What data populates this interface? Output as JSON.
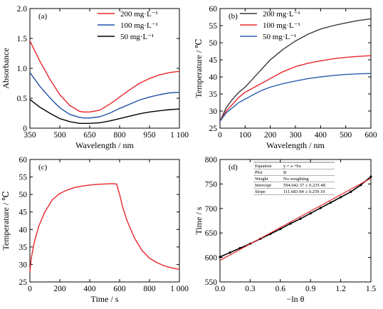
{
  "panels": [
    {
      "id": "a",
      "panel_label": "(a)",
      "xlabel": "Wavelength / nm",
      "ylabel": "Absorbance",
      "xlim": [
        350,
        1100
      ],
      "ylim": [
        0,
        2.0
      ],
      "xticks": [
        350,
        500,
        650,
        800,
        950,
        1100
      ],
      "xtick_labels": [
        "350",
        "500",
        "650",
        "800",
        "950",
        "1 100"
      ],
      "yticks": [
        0,
        0.5,
        1.0,
        1.5,
        2.0
      ],
      "ytick_labels": [
        "0",
        "0.5",
        "1.0",
        "1.5",
        "2.0"
      ],
      "legend": {
        "position": "top-right",
        "entries": [
          {
            "label": "200 mg·L⁻¹",
            "color": "#e8262a"
          },
          {
            "label": "100 mg·L⁻¹",
            "color": "#1f4ea3"
          },
          {
            "label": "50 mg·L⁻¹",
            "color": "#000000"
          }
        ]
      }
    },
    {
      "id": "b",
      "panel_label": "(b)",
      "xlabel": "Wavelength / nm",
      "ylabel": "Temperature / ℃",
      "xlim": [
        0,
        600
      ],
      "ylim": [
        25,
        60
      ],
      "xticks": [
        0,
        100,
        200,
        300,
        400,
        500,
        600
      ],
      "xtick_labels": [
        "0",
        "100",
        "200",
        "300",
        "400",
        "500",
        "600"
      ],
      "yticks": [
        25,
        30,
        35,
        40,
        45,
        50,
        55,
        60
      ],
      "ytick_labels": [
        "25",
        "30",
        "35",
        "40",
        "45",
        "50",
        "55",
        "60"
      ],
      "legend": {
        "position": "top-left",
        "entries": [
          {
            "label": "200 mg·L⁻¹",
            "color": "#3a3a3a"
          },
          {
            "label": "100 mg·L⁻¹",
            "color": "#e8262a"
          },
          {
            "label": "50 mg·L⁻¹",
            "color": "#2a5fb0"
          }
        ]
      }
    },
    {
      "id": "c",
      "panel_label": "(c)",
      "xlabel": "Time / s",
      "ylabel": "Temperature / ℃",
      "xlim": [
        0,
        1000
      ],
      "ylim": [
        25,
        60
      ],
      "xticks": [
        0,
        200,
        400,
        600,
        800,
        1000
      ],
      "xtick_labels": [
        "0",
        "200",
        "400",
        "600",
        "800",
        "1 000"
      ],
      "yticks": [
        25,
        30,
        35,
        40,
        45,
        50,
        55,
        60
      ],
      "ytick_labels": [
        "25",
        "30",
        "35",
        "40",
        "45",
        "50",
        "55",
        "60"
      ]
    },
    {
      "id": "d",
      "panel_label": "(d)",
      "xlabel": "−ln θ",
      "ylabel": "Time / s",
      "xlim": [
        0,
        1.5
      ],
      "ylim": [
        550,
        800
      ],
      "xticks": [
        0,
        0.3,
        0.6,
        0.9,
        1.2,
        1.5
      ],
      "xtick_labels": [
        "0.0",
        "0.3",
        "0.6",
        "0.9",
        "1.2",
        "1.5"
      ],
      "yticks": [
        550,
        600,
        650,
        700,
        750,
        800
      ],
      "ytick_labels": [
        "550",
        "600",
        "650",
        "700",
        "750",
        "800"
      ],
      "fit_table": [
        [
          "Equation",
          "y = a +bx"
        ],
        [
          "Plot",
          "B"
        ],
        [
          "Weight",
          "No weighting"
        ],
        [
          "Intercept",
          "594.042 37 ± 0.235 48"
        ],
        [
          "Slope",
          "111.683 84 ± 0.259 19"
        ]
      ]
    }
  ],
  "chart_data": [
    {
      "type": "line",
      "panel": "a",
      "series": [
        {
          "name": "200 mg·L⁻¹",
          "color": "#e8262a",
          "x": [
            350,
            400,
            450,
            500,
            550,
            600,
            620,
            650,
            700,
            750,
            800,
            850,
            900,
            950,
            1000,
            1050,
            1100
          ],
          "y": [
            1.46,
            1.12,
            0.82,
            0.56,
            0.38,
            0.28,
            0.27,
            0.27,
            0.3,
            0.4,
            0.52,
            0.64,
            0.75,
            0.83,
            0.89,
            0.93,
            0.95
          ]
        },
        {
          "name": "100 mg·L⁻¹",
          "color": "#1f4ea3",
          "x": [
            350,
            400,
            450,
            500,
            550,
            600,
            620,
            650,
            700,
            750,
            800,
            850,
            900,
            950,
            1000,
            1050,
            1100
          ],
          "y": [
            0.93,
            0.7,
            0.51,
            0.34,
            0.23,
            0.18,
            0.17,
            0.17,
            0.19,
            0.25,
            0.33,
            0.4,
            0.47,
            0.52,
            0.56,
            0.59,
            0.6
          ]
        },
        {
          "name": "50 mg·L⁻¹",
          "color": "#000000",
          "x": [
            350,
            400,
            450,
            500,
            550,
            600,
            620,
            650,
            700,
            750,
            800,
            850,
            900,
            950,
            1000,
            1050,
            1100
          ],
          "y": [
            0.48,
            0.35,
            0.25,
            0.16,
            0.11,
            0.08,
            0.08,
            0.08,
            0.09,
            0.12,
            0.16,
            0.2,
            0.24,
            0.27,
            0.29,
            0.31,
            0.32
          ]
        }
      ]
    },
    {
      "type": "line",
      "panel": "b",
      "series": [
        {
          "name": "200 mg·L⁻¹",
          "color": "#3a3a3a",
          "x": [
            0,
            25,
            50,
            75,
            100,
            125,
            150,
            175,
            200,
            250,
            300,
            350,
            400,
            450,
            500,
            550,
            600
          ],
          "y": [
            27.0,
            31.0,
            33.5,
            35.5,
            37.0,
            39.0,
            41.0,
            43.0,
            45.0,
            48.0,
            50.5,
            52.5,
            54.0,
            55.0,
            55.8,
            56.5,
            57.0
          ]
        },
        {
          "name": "100 mg·L⁻¹",
          "color": "#e8262a",
          "x": [
            0,
            25,
            50,
            75,
            100,
            125,
            150,
            175,
            200,
            250,
            300,
            350,
            400,
            450,
            500,
            550,
            600
          ],
          "y": [
            27.0,
            30.0,
            32.0,
            34.0,
            35.5,
            36.5,
            37.5,
            38.5,
            39.5,
            41.5,
            43.0,
            44.0,
            44.7,
            45.3,
            45.7,
            46.0,
            46.2
          ]
        },
        {
          "name": "50 mg·L⁻¹",
          "color": "#2a5fb0",
          "x": [
            0,
            25,
            50,
            75,
            100,
            125,
            150,
            175,
            200,
            250,
            300,
            350,
            400,
            450,
            500,
            550,
            600
          ],
          "y": [
            27.0,
            29.5,
            31.0,
            32.5,
            33.5,
            34.5,
            35.5,
            36.3,
            37.0,
            38.0,
            38.8,
            39.5,
            40.0,
            40.4,
            40.7,
            40.9,
            41.0
          ]
        }
      ]
    },
    {
      "type": "line",
      "panel": "c",
      "series": [
        {
          "color": "#e8262a",
          "x": [
            0,
            10,
            30,
            60,
            100,
            150,
            200,
            250,
            300,
            350,
            400,
            450,
            500,
            550,
            580,
            600,
            620,
            650,
            700,
            750,
            800,
            850,
            900,
            950,
            1000
          ],
          "y": [
            28.0,
            32.0,
            36.5,
            41.0,
            45.0,
            48.5,
            50.3,
            51.3,
            52.0,
            52.4,
            52.7,
            52.9,
            53.0,
            53.1,
            53.0,
            50.0,
            46.5,
            42.5,
            37.5,
            34.0,
            31.8,
            30.5,
            29.6,
            29.0,
            28.6
          ]
        }
      ]
    },
    {
      "type": "scatter",
      "panel": "d",
      "series": [
        {
          "color": "#000000",
          "x": [
            0.0,
            0.1,
            0.2,
            0.3,
            0.4,
            0.5,
            0.6,
            0.7,
            0.8,
            0.9,
            1.0,
            1.1,
            1.2,
            1.3,
            1.4,
            1.5
          ],
          "y": [
            601,
            610,
            619,
            628,
            638,
            648,
            658,
            669,
            679,
            690,
            701,
            712,
            723,
            734,
            748,
            765
          ]
        },
        {
          "color": "#e8262a",
          "x": [
            0.0,
            1.5
          ],
          "y": [
            594.04,
            761.57
          ]
        }
      ]
    }
  ]
}
